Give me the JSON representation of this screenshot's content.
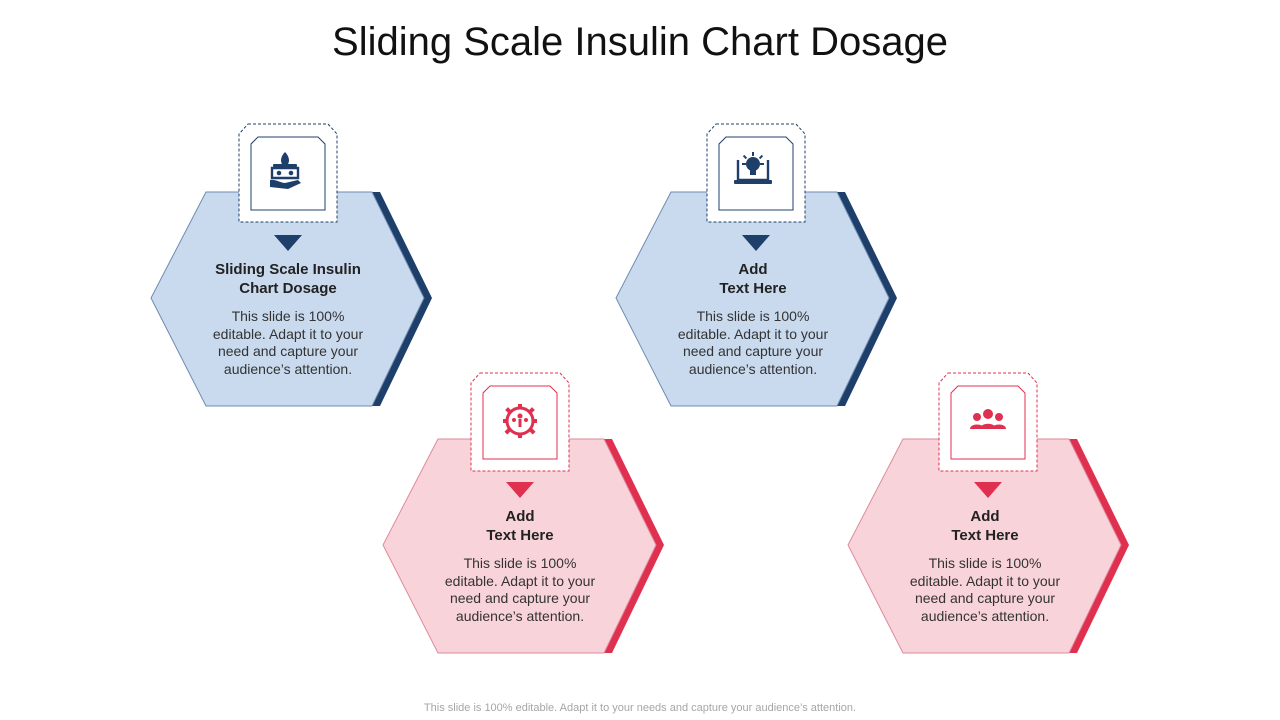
{
  "title": "Sliding Scale Insulin Chart Dosage",
  "footer": "This slide is 100% editable. Adapt it to your needs and capture your audience’s attention.",
  "colors": {
    "blue_fill": "#c9daee",
    "blue_stroke": "#6f8bb0",
    "blue_accent": "#1f3f6b",
    "pink_fill": "#f9d3da",
    "pink_stroke": "#e08a9b",
    "pink_accent": "#e0304f"
  },
  "cards": [
    {
      "theme": "blue",
      "icon": "hand-plant-icon",
      "heading_lines": [
        "Sliding  Scale Insulin",
        "Chart Dosage"
      ],
      "body_lines": [
        "This slide is 100%",
        "editable. Adapt it to your",
        "need and capture your",
        "audience’s attention."
      ]
    },
    {
      "theme": "blue",
      "icon": "laptop-idea-icon",
      "heading_lines": [
        "Add",
        "Text Here"
      ],
      "body_lines": [
        "This slide is 100%",
        "editable. Adapt it to your",
        "need and capture your",
        "audience’s attention."
      ]
    },
    {
      "theme": "pink",
      "icon": "gear-team-icon",
      "heading_lines": [
        "Add",
        "Text Here"
      ],
      "body_lines": [
        "This slide is 100%",
        "editable. Adapt it to your",
        "need and capture your",
        "audience’s attention."
      ]
    },
    {
      "theme": "pink",
      "icon": "people-group-icon",
      "heading_lines": [
        "Add",
        "Text Here"
      ],
      "body_lines": [
        "This slide is 100%",
        "editable. Adapt it to your",
        "need and capture your",
        "audience’s attention."
      ]
    }
  ]
}
